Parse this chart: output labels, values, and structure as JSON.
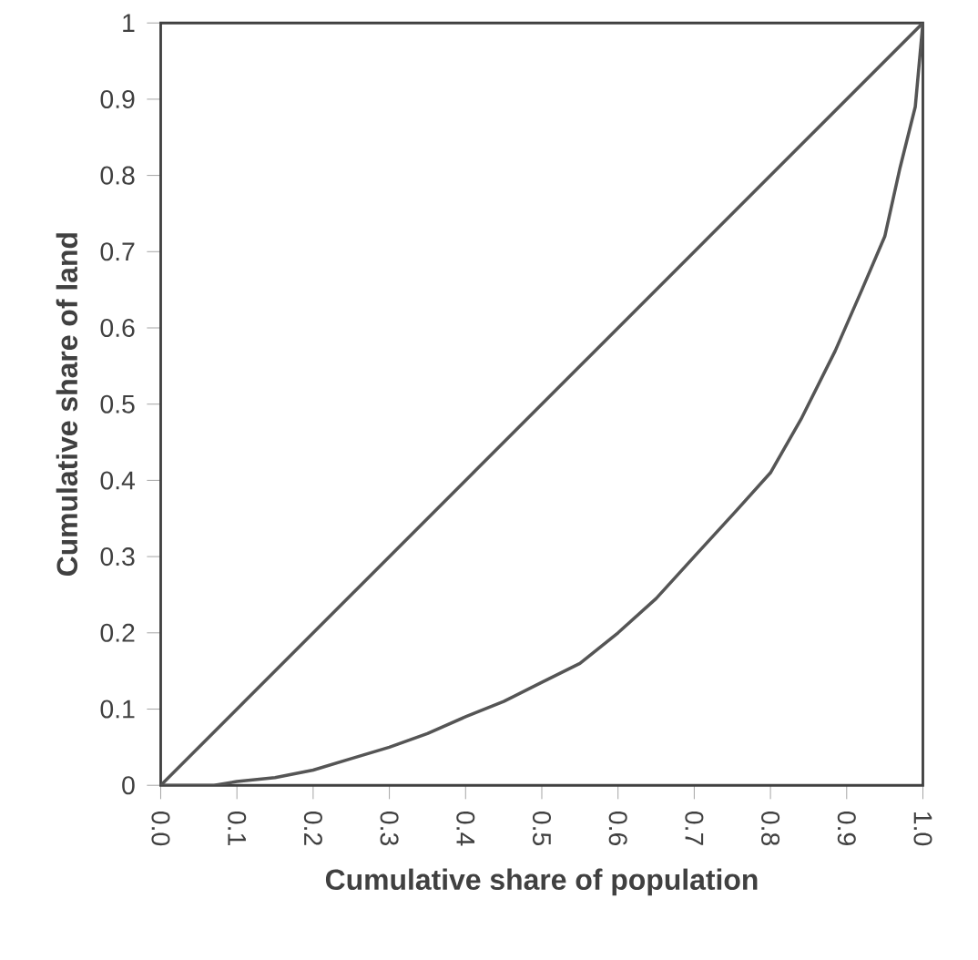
{
  "chart_data": {
    "type": "line",
    "xlabel": "Cumulative share of population",
    "ylabel": "Cumulative share  of  land",
    "xlim": [
      0,
      1
    ],
    "ylim": [
      0,
      1
    ],
    "xticks": [
      {
        "value": 0,
        "label": "0.0"
      },
      0.1,
      0.2,
      0.3,
      0.4,
      0.5,
      0.6,
      0.7,
      0.8,
      0.9,
      {
        "value": 1,
        "label": "1.0"
      }
    ],
    "yticks": [
      0,
      0.1,
      0.2,
      0.3,
      0.4,
      0.5,
      0.6,
      0.7,
      0.8,
      0.9,
      1
    ],
    "grid": false,
    "marker": "none",
    "line_style": "solid",
    "series": [
      {
        "color": "#555555",
        "x": [
          0,
          1
        ],
        "values": [
          0,
          1
        ]
      },
      {
        "color": "#555555",
        "x": [
          0,
          0.07,
          0.1,
          0.15,
          0.2,
          0.25,
          0.3,
          0.35,
          0.4,
          0.45,
          0.5,
          0.55,
          0.6,
          0.65,
          0.7,
          0.755,
          0.8,
          0.84,
          0.885,
          0.92,
          0.95,
          0.97,
          0.99,
          1
        ],
        "values": [
          0,
          0,
          0.005,
          0.01,
          0.02,
          0.035,
          0.05,
          0.068,
          0.09,
          0.11,
          0.135,
          0.16,
          0.2,
          0.245,
          0.3,
          0.36,
          0.41,
          0.48,
          0.57,
          0.65,
          0.72,
          0.81,
          0.89,
          1
        ]
      }
    ]
  }
}
